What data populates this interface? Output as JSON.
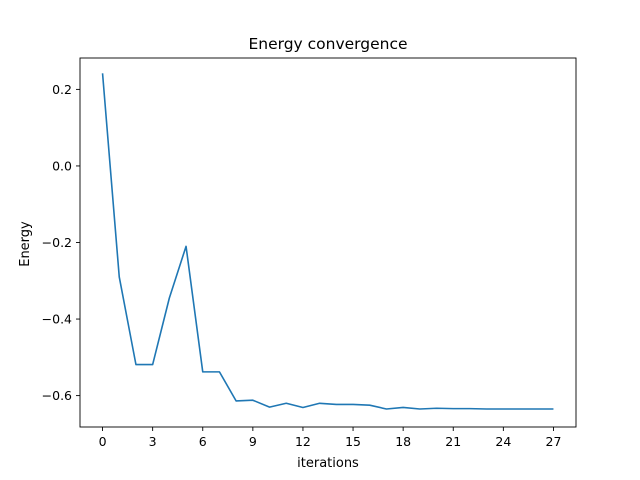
{
  "chart_data": {
    "type": "line",
    "title": "Energy convergence",
    "xlabel": "iterations",
    "ylabel": "Energy",
    "xlim": [
      -1.35,
      28.35
    ],
    "ylim": [
      -0.682,
      0.282
    ],
    "xticks": [
      0,
      3,
      6,
      9,
      12,
      15,
      18,
      21,
      24,
      27
    ],
    "yticks": [
      -0.6,
      -0.4,
      -0.2,
      0.0,
      0.2
    ],
    "ytick_labels": [
      "−0.6",
      "−0.4",
      "−0.2",
      "0.0",
      "0.2"
    ],
    "grid": false,
    "legend": "none",
    "series": [
      {
        "color": "#1f77b4",
        "x": [
          0,
          1,
          2,
          3,
          4,
          5,
          6,
          7,
          8,
          9,
          10,
          11,
          12,
          13,
          14,
          15,
          16,
          17,
          18,
          19,
          20,
          21,
          22,
          23,
          24,
          25,
          26,
          27
        ],
        "values": [
          0.242,
          -0.29,
          -0.519,
          -0.519,
          -0.345,
          -0.21,
          -0.538,
          -0.538,
          -0.614,
          -0.612,
          -0.63,
          -0.62,
          -0.631,
          -0.62,
          -0.623,
          -0.623,
          -0.625,
          -0.635,
          -0.631,
          -0.635,
          -0.633,
          -0.634,
          -0.634,
          -0.635,
          -0.635,
          -0.635,
          -0.635,
          -0.635
        ]
      }
    ]
  }
}
